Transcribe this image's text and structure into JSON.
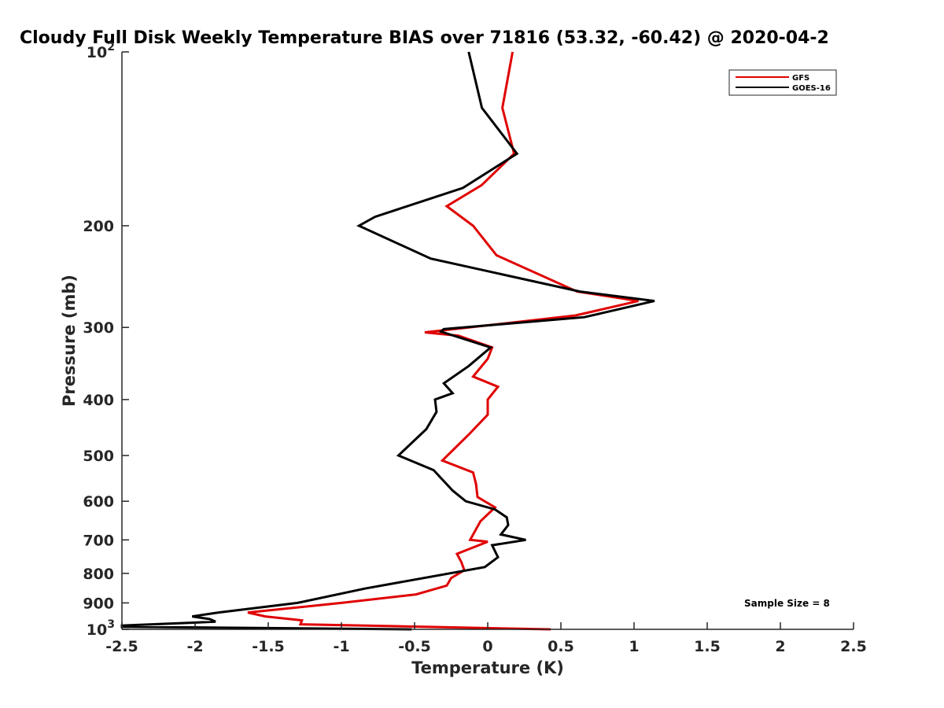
{
  "chart_data": {
    "type": "line",
    "title": "Cloudy Full Disk Weekly Temperature BIAS over 71816 (53.32, -60.42) @ 2020-04-2",
    "xlabel": "Temperature (K)",
    "ylabel": "Pressure (mb)",
    "xlim": [
      -2.5,
      2.5
    ],
    "ylim": [
      100,
      1000
    ],
    "y_scale": "log",
    "y_reversed": true,
    "grid": false,
    "legend_position": "top-right",
    "x_ticks": [
      {
        "value": -2.5,
        "label": "-2.5"
      },
      {
        "value": -2,
        "label": "-2"
      },
      {
        "value": -1.5,
        "label": "-1.5"
      },
      {
        "value": -1,
        "label": "-1"
      },
      {
        "value": -0.5,
        "label": "-0.5"
      },
      {
        "value": 0,
        "label": "0"
      },
      {
        "value": 0.5,
        "label": "0.5"
      },
      {
        "value": 1,
        "label": "1"
      },
      {
        "value": 1.5,
        "label": "1.5"
      },
      {
        "value": 2,
        "label": "2"
      },
      {
        "value": 2.5,
        "label": "2.5"
      }
    ],
    "y_ticks": [
      {
        "value": 100,
        "base": "10",
        "exp": "2"
      },
      {
        "value": 200,
        "label": "200"
      },
      {
        "value": 300,
        "label": "300"
      },
      {
        "value": 400,
        "label": "400"
      },
      {
        "value": 500,
        "label": "500"
      },
      {
        "value": 600,
        "label": "600"
      },
      {
        "value": 700,
        "label": "700"
      },
      {
        "value": 800,
        "label": "800"
      },
      {
        "value": 900,
        "label": "900"
      },
      {
        "value": 1000,
        "base": "10",
        "exp": "3"
      }
    ],
    "series": [
      {
        "name": "GFS",
        "color": "#e00000",
        "points": [
          [
            0.17,
            100
          ],
          [
            0.1,
            125
          ],
          [
            0.18,
            150
          ],
          [
            -0.04,
            170
          ],
          [
            -0.28,
            185
          ],
          [
            -0.1,
            200
          ],
          [
            0.06,
            225
          ],
          [
            0.61,
            260
          ],
          [
            1.03,
            270
          ],
          [
            0.6,
            286
          ],
          [
            -0.43,
            306
          ],
          [
            -0.2,
            310
          ],
          [
            0.03,
            325
          ],
          [
            0.0,
            340
          ],
          [
            -0.1,
            365
          ],
          [
            0.07,
            380
          ],
          [
            0.0,
            400
          ],
          [
            0.0,
            425
          ],
          [
            -0.13,
            460
          ],
          [
            -0.31,
            510
          ],
          [
            -0.1,
            535
          ],
          [
            -0.08,
            560
          ],
          [
            -0.07,
            590
          ],
          [
            0.05,
            615
          ],
          [
            -0.05,
            650
          ],
          [
            -0.12,
            700
          ],
          [
            0.0,
            705
          ],
          [
            -0.21,
            740
          ],
          [
            -0.18,
            765
          ],
          [
            -0.16,
            790
          ],
          [
            -0.25,
            815
          ],
          [
            -0.28,
            840
          ],
          [
            -0.49,
            870
          ],
          [
            -1.0,
            900
          ],
          [
            -1.64,
            935
          ],
          [
            -1.52,
            950
          ],
          [
            -1.27,
            965
          ],
          [
            -1.28,
            980
          ],
          [
            0.43,
            1000
          ]
        ]
      },
      {
        "name": "GOES-16",
        "color": "#000000",
        "points": [
          [
            -0.13,
            100
          ],
          [
            -0.04,
            125
          ],
          [
            0.2,
            150
          ],
          [
            -0.17,
            172
          ],
          [
            -0.77,
            193
          ],
          [
            -0.88,
            200
          ],
          [
            -0.39,
            228
          ],
          [
            0.63,
            260
          ],
          [
            1.14,
            270
          ],
          [
            0.66,
            288
          ],
          [
            -0.3,
            302
          ],
          [
            -0.32,
            305
          ],
          [
            0.02,
            325
          ],
          [
            -0.13,
            350
          ],
          [
            -0.3,
            375
          ],
          [
            -0.24,
            390
          ],
          [
            -0.36,
            400
          ],
          [
            -0.35,
            420
          ],
          [
            -0.42,
            450
          ],
          [
            -0.61,
            500
          ],
          [
            -0.37,
            530
          ],
          [
            -0.24,
            575
          ],
          [
            -0.15,
            600
          ],
          [
            0.05,
            620
          ],
          [
            0.13,
            640
          ],
          [
            0.14,
            660
          ],
          [
            0.09,
            685
          ],
          [
            0.26,
            700
          ],
          [
            0.03,
            715
          ],
          [
            0.07,
            750
          ],
          [
            -0.02,
            780
          ],
          [
            -0.84,
            850
          ],
          [
            -1.3,
            900
          ],
          [
            -1.84,
            935
          ],
          [
            -2.02,
            950
          ],
          [
            -1.9,
            960
          ],
          [
            -1.86,
            970
          ],
          [
            -2.5,
            985
          ],
          [
            -2.5,
            990
          ],
          [
            -0.52,
            1000
          ]
        ]
      }
    ],
    "annotations": [
      "Sample Size = 8"
    ]
  }
}
